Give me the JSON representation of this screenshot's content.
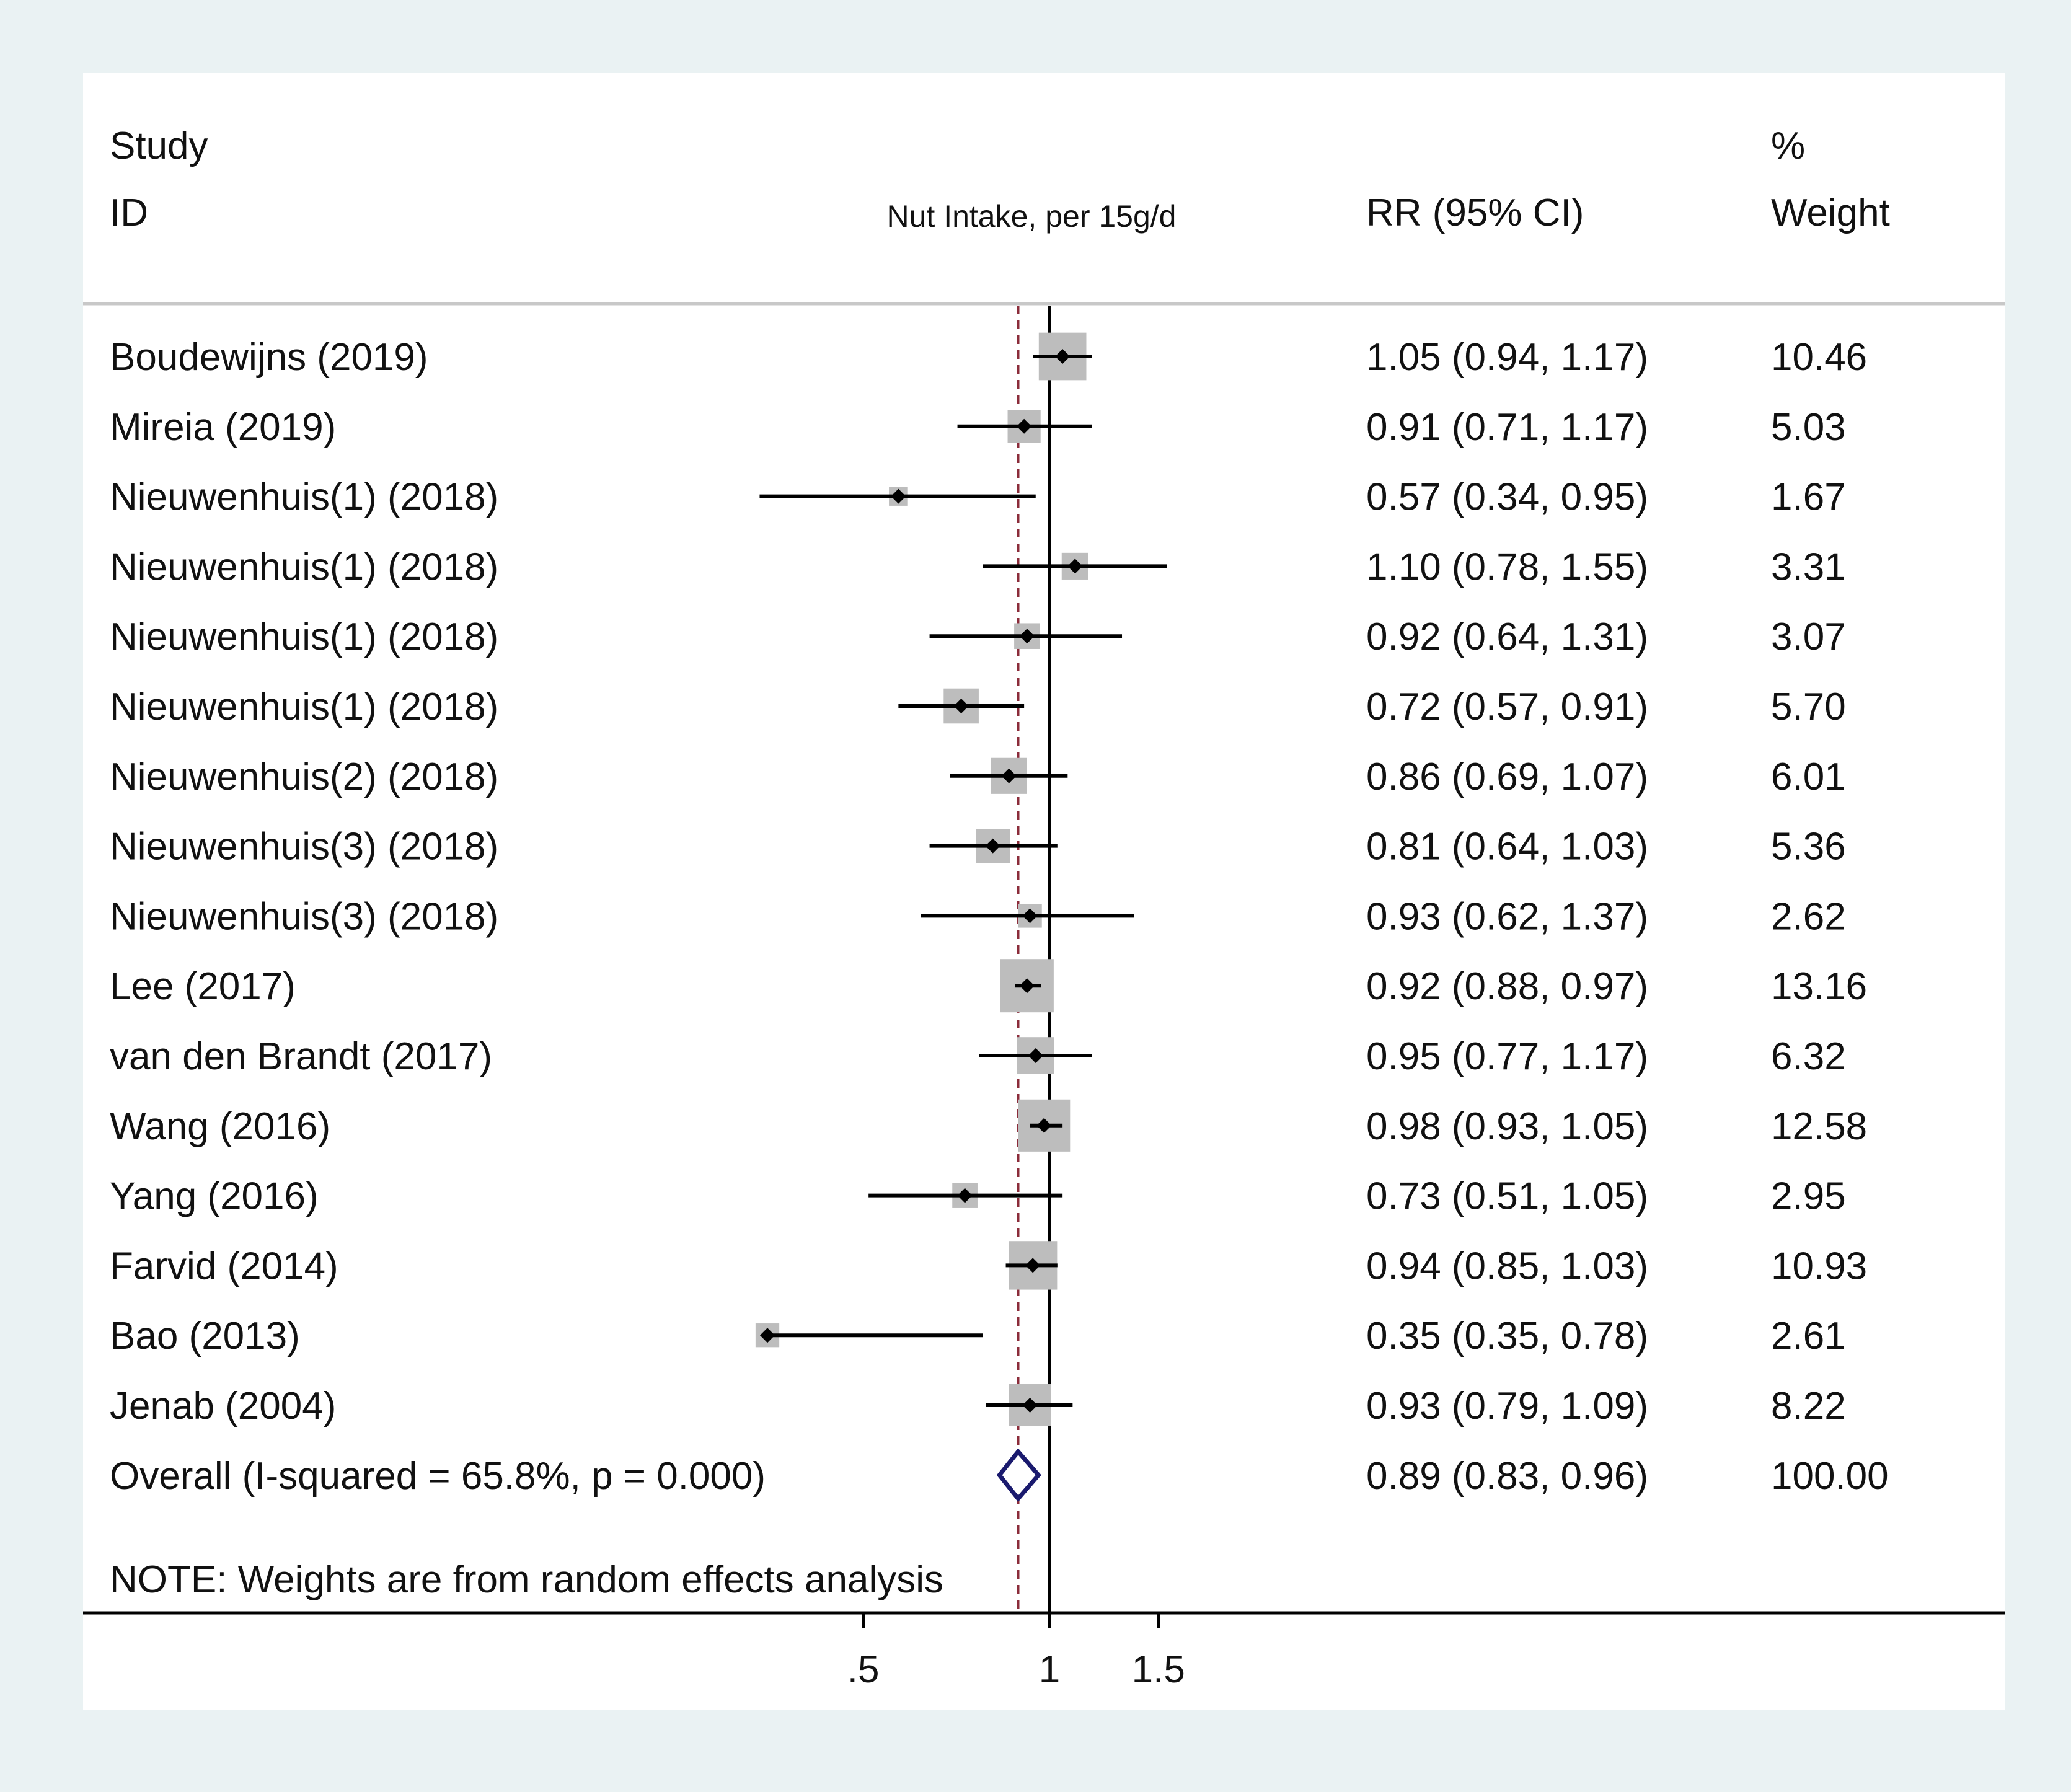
{
  "chart_data": {
    "type": "forest",
    "header": {
      "study_line1": "Study",
      "study_line2": "ID",
      "axis_title": "Nut Intake, per 15g/d",
      "effect_col": "RR (95% CI)",
      "weight_line1": "%",
      "weight_line2": "Weight"
    },
    "studies": [
      {
        "label": "Boudewijns (2019)",
        "rr": 1.05,
        "lo": 0.94,
        "hi": 1.17,
        "rr_text": "1.05 (0.94, 1.17)",
        "weight": 10.46,
        "weight_text": "10.46"
      },
      {
        "label": "Mireia  (2019)",
        "rr": 0.91,
        "lo": 0.71,
        "hi": 1.17,
        "rr_text": "0.91 (0.71, 1.17)",
        "weight": 5.03,
        "weight_text": "5.03"
      },
      {
        "label": "Nieuwenhuis(1) (2018)",
        "rr": 0.57,
        "lo": 0.34,
        "hi": 0.95,
        "rr_text": "0.57 (0.34, 0.95)",
        "weight": 1.67,
        "weight_text": "1.67"
      },
      {
        "label": "Nieuwenhuis(1) (2018)",
        "rr": 1.1,
        "lo": 0.78,
        "hi": 1.55,
        "rr_text": "1.10 (0.78, 1.55)",
        "weight": 3.31,
        "weight_text": "3.31"
      },
      {
        "label": "Nieuwenhuis(1) (2018)",
        "rr": 0.92,
        "lo": 0.64,
        "hi": 1.31,
        "rr_text": "0.92 (0.64, 1.31)",
        "weight": 3.07,
        "weight_text": "3.07"
      },
      {
        "label": "Nieuwenhuis(1) (2018)",
        "rr": 0.72,
        "lo": 0.57,
        "hi": 0.91,
        "rr_text": "0.72 (0.57, 0.91)",
        "weight": 5.7,
        "weight_text": "5.70"
      },
      {
        "label": "Nieuwenhuis(2) (2018)",
        "rr": 0.86,
        "lo": 0.69,
        "hi": 1.07,
        "rr_text": "0.86 (0.69, 1.07)",
        "weight": 6.01,
        "weight_text": "6.01"
      },
      {
        "label": "Nieuwenhuis(3) (2018)",
        "rr": 0.81,
        "lo": 0.64,
        "hi": 1.03,
        "rr_text": "0.81 (0.64, 1.03)",
        "weight": 5.36,
        "weight_text": "5.36"
      },
      {
        "label": "Nieuwenhuis(3) (2018)",
        "rr": 0.93,
        "lo": 0.62,
        "hi": 1.37,
        "rr_text": "0.93 (0.62, 1.37)",
        "weight": 2.62,
        "weight_text": "2.62"
      },
      {
        "label": "Lee (2017)",
        "rr": 0.92,
        "lo": 0.88,
        "hi": 0.97,
        "rr_text": "0.92 (0.88, 0.97)",
        "weight": 13.16,
        "weight_text": "13.16"
      },
      {
        "label": "van den Brandt (2017)",
        "rr": 0.95,
        "lo": 0.77,
        "hi": 1.17,
        "rr_text": "0.95 (0.77, 1.17)",
        "weight": 6.32,
        "weight_text": "6.32"
      },
      {
        "label": "Wang (2016)",
        "rr": 0.98,
        "lo": 0.93,
        "hi": 1.05,
        "rr_text": "0.98 (0.93, 1.05)",
        "weight": 12.58,
        "weight_text": "12.58"
      },
      {
        "label": "Yang (2016)",
        "rr": 0.73,
        "lo": 0.51,
        "hi": 1.05,
        "rr_text": "0.73 (0.51, 1.05)",
        "weight": 2.95,
        "weight_text": "2.95"
      },
      {
        "label": "Farvid (2014)",
        "rr": 0.94,
        "lo": 0.85,
        "hi": 1.03,
        "rr_text": "0.94 (0.85, 1.03)",
        "weight": 10.93,
        "weight_text": "10.93"
      },
      {
        "label": "Bao (2013)",
        "rr": 0.35,
        "lo": 0.35,
        "hi": 0.78,
        "rr_text": "0.35 (0.35, 0.78)",
        "weight": 2.61,
        "weight_text": "2.61"
      },
      {
        "label": "Jenab (2004)",
        "rr": 0.93,
        "lo": 0.79,
        "hi": 1.09,
        "rr_text": "0.93 (0.79, 1.09)",
        "weight": 8.22,
        "weight_text": "8.22"
      }
    ],
    "overall": {
      "label": "Overall  (I-squared = 65.8%, p = 0.000)",
      "rr": 0.89,
      "lo": 0.83,
      "hi": 0.96,
      "rr_text": "0.89 (0.83, 0.96)",
      "weight_text": "100.00"
    },
    "note": "NOTE: Weights are from random effects analysis",
    "x_axis": {
      "scale": "log",
      "ticks": [
        0.5,
        1,
        1.5
      ],
      "tick_labels": [
        ".5",
        "1",
        "1.5"
      ],
      "null_line": 1,
      "overall_line": 0.89
    },
    "colors": {
      "box": "#bdbdbd",
      "point": "#000000",
      "ci_line": "#000000",
      "null_line": "#000000",
      "overall_line": "#8b2c3a",
      "diamond": "#1a1a6e",
      "header_rule": "#c8c8c8"
    }
  }
}
